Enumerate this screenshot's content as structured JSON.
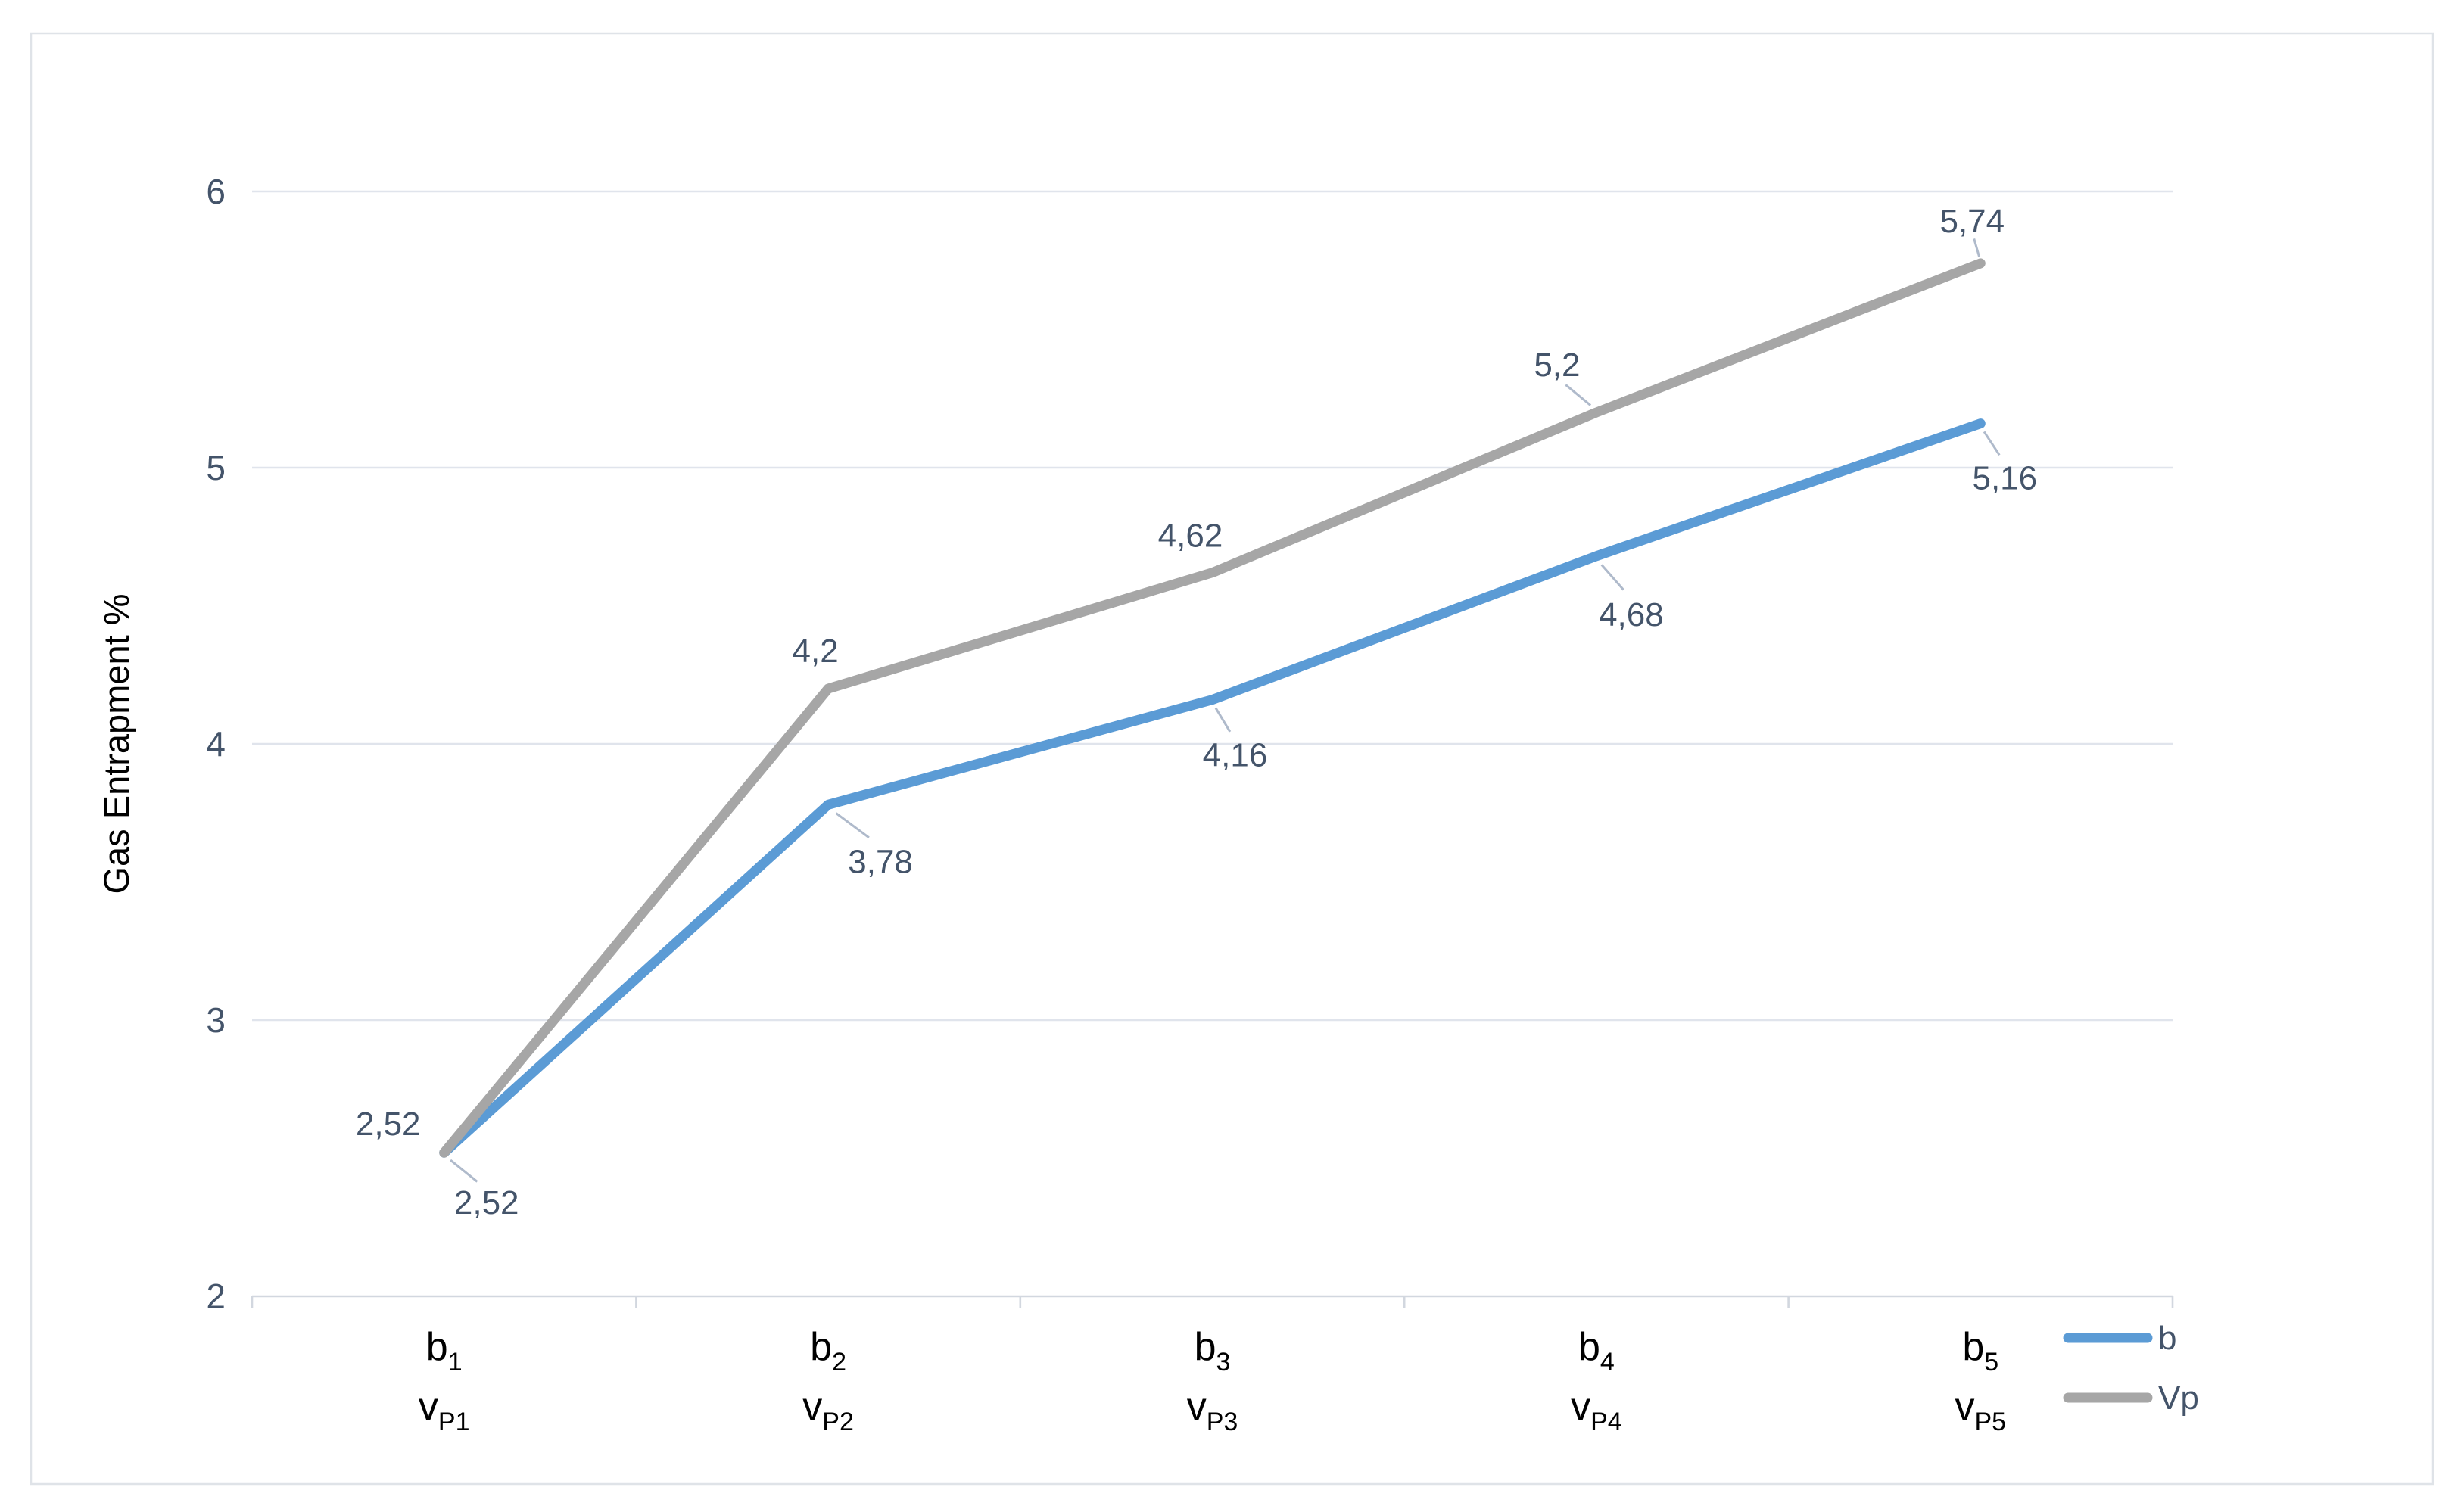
{
  "chart_data": {
    "type": "line",
    "title": "",
    "y_axis": {
      "label": "Gas Entrapment %",
      "min": 2,
      "max": 6,
      "step": 1,
      "tick_labels": [
        "2",
        "3",
        "4",
        "5",
        "6"
      ]
    },
    "x_axis": {
      "categories": [
        {
          "top": "b",
          "top_sub": "1",
          "bottom": "v",
          "bottom_sub": "P1"
        },
        {
          "top": "b",
          "top_sub": "2",
          "bottom": "v",
          "bottom_sub": "P2"
        },
        {
          "top": "b",
          "top_sub": "3",
          "bottom": "v",
          "bottom_sub": "P3"
        },
        {
          "top": "b",
          "top_sub": "4",
          "bottom": "v",
          "bottom_sub": "P4"
        },
        {
          "top": "b",
          "top_sub": "5",
          "bottom": "v",
          "bottom_sub": "P5"
        }
      ]
    },
    "series": [
      {
        "name": "b",
        "color": "#5B9BD5",
        "values": [
          2.52,
          3.78,
          4.16,
          4.68,
          5.16
        ],
        "data_labels": [
          "2,52",
          "3,78",
          "4,16",
          "4,68",
          "5,16"
        ],
        "label_offsets": [
          {
            "dx": 56,
            "dy": 66,
            "leader": true
          },
          {
            "dx": 69,
            "dy": 75,
            "leader": true
          },
          {
            "dx": 30,
            "dy": 73,
            "leader": true
          },
          {
            "dx": 46,
            "dy": 77,
            "leader": true
          },
          {
            "dx": 32,
            "dy": 72,
            "leader": true
          }
        ]
      },
      {
        "name": "Vp",
        "color": "#A6A6A6",
        "values": [
          2.52,
          4.2,
          4.62,
          5.2,
          5.74
        ],
        "data_labels": [
          "2,52",
          "4,2",
          "4,62",
          "5,2",
          "5,74"
        ],
        "label_offsets": [
          {
            "dx": -74,
            "dy": -38,
            "leader": false
          },
          {
            "dx": -17,
            "dy": -50,
            "leader": false
          },
          {
            "dx": -29,
            "dy": -49,
            "leader": false
          },
          {
            "dx": -52,
            "dy": -63,
            "leader": true
          },
          {
            "dx": -11,
            "dy": -56,
            "leader": true
          }
        ]
      }
    ],
    "legend": {
      "position": "bottom-right",
      "entries": [
        {
          "label": "b",
          "color": "#5B9BD5"
        },
        {
          "label": "Vp",
          "color": "#A6A6A6"
        }
      ]
    },
    "grid": true,
    "colors": {
      "background": "#FFFFFF",
      "frame_border": "#DFE3E8",
      "gridline": "#E0E4EC",
      "axis_line": "#D2D7DF",
      "tick_label": "#44546A",
      "data_label": "#44546A",
      "category_label": "#000000",
      "axis_title": "#000000",
      "leader_line": "#AFBACB"
    }
  }
}
